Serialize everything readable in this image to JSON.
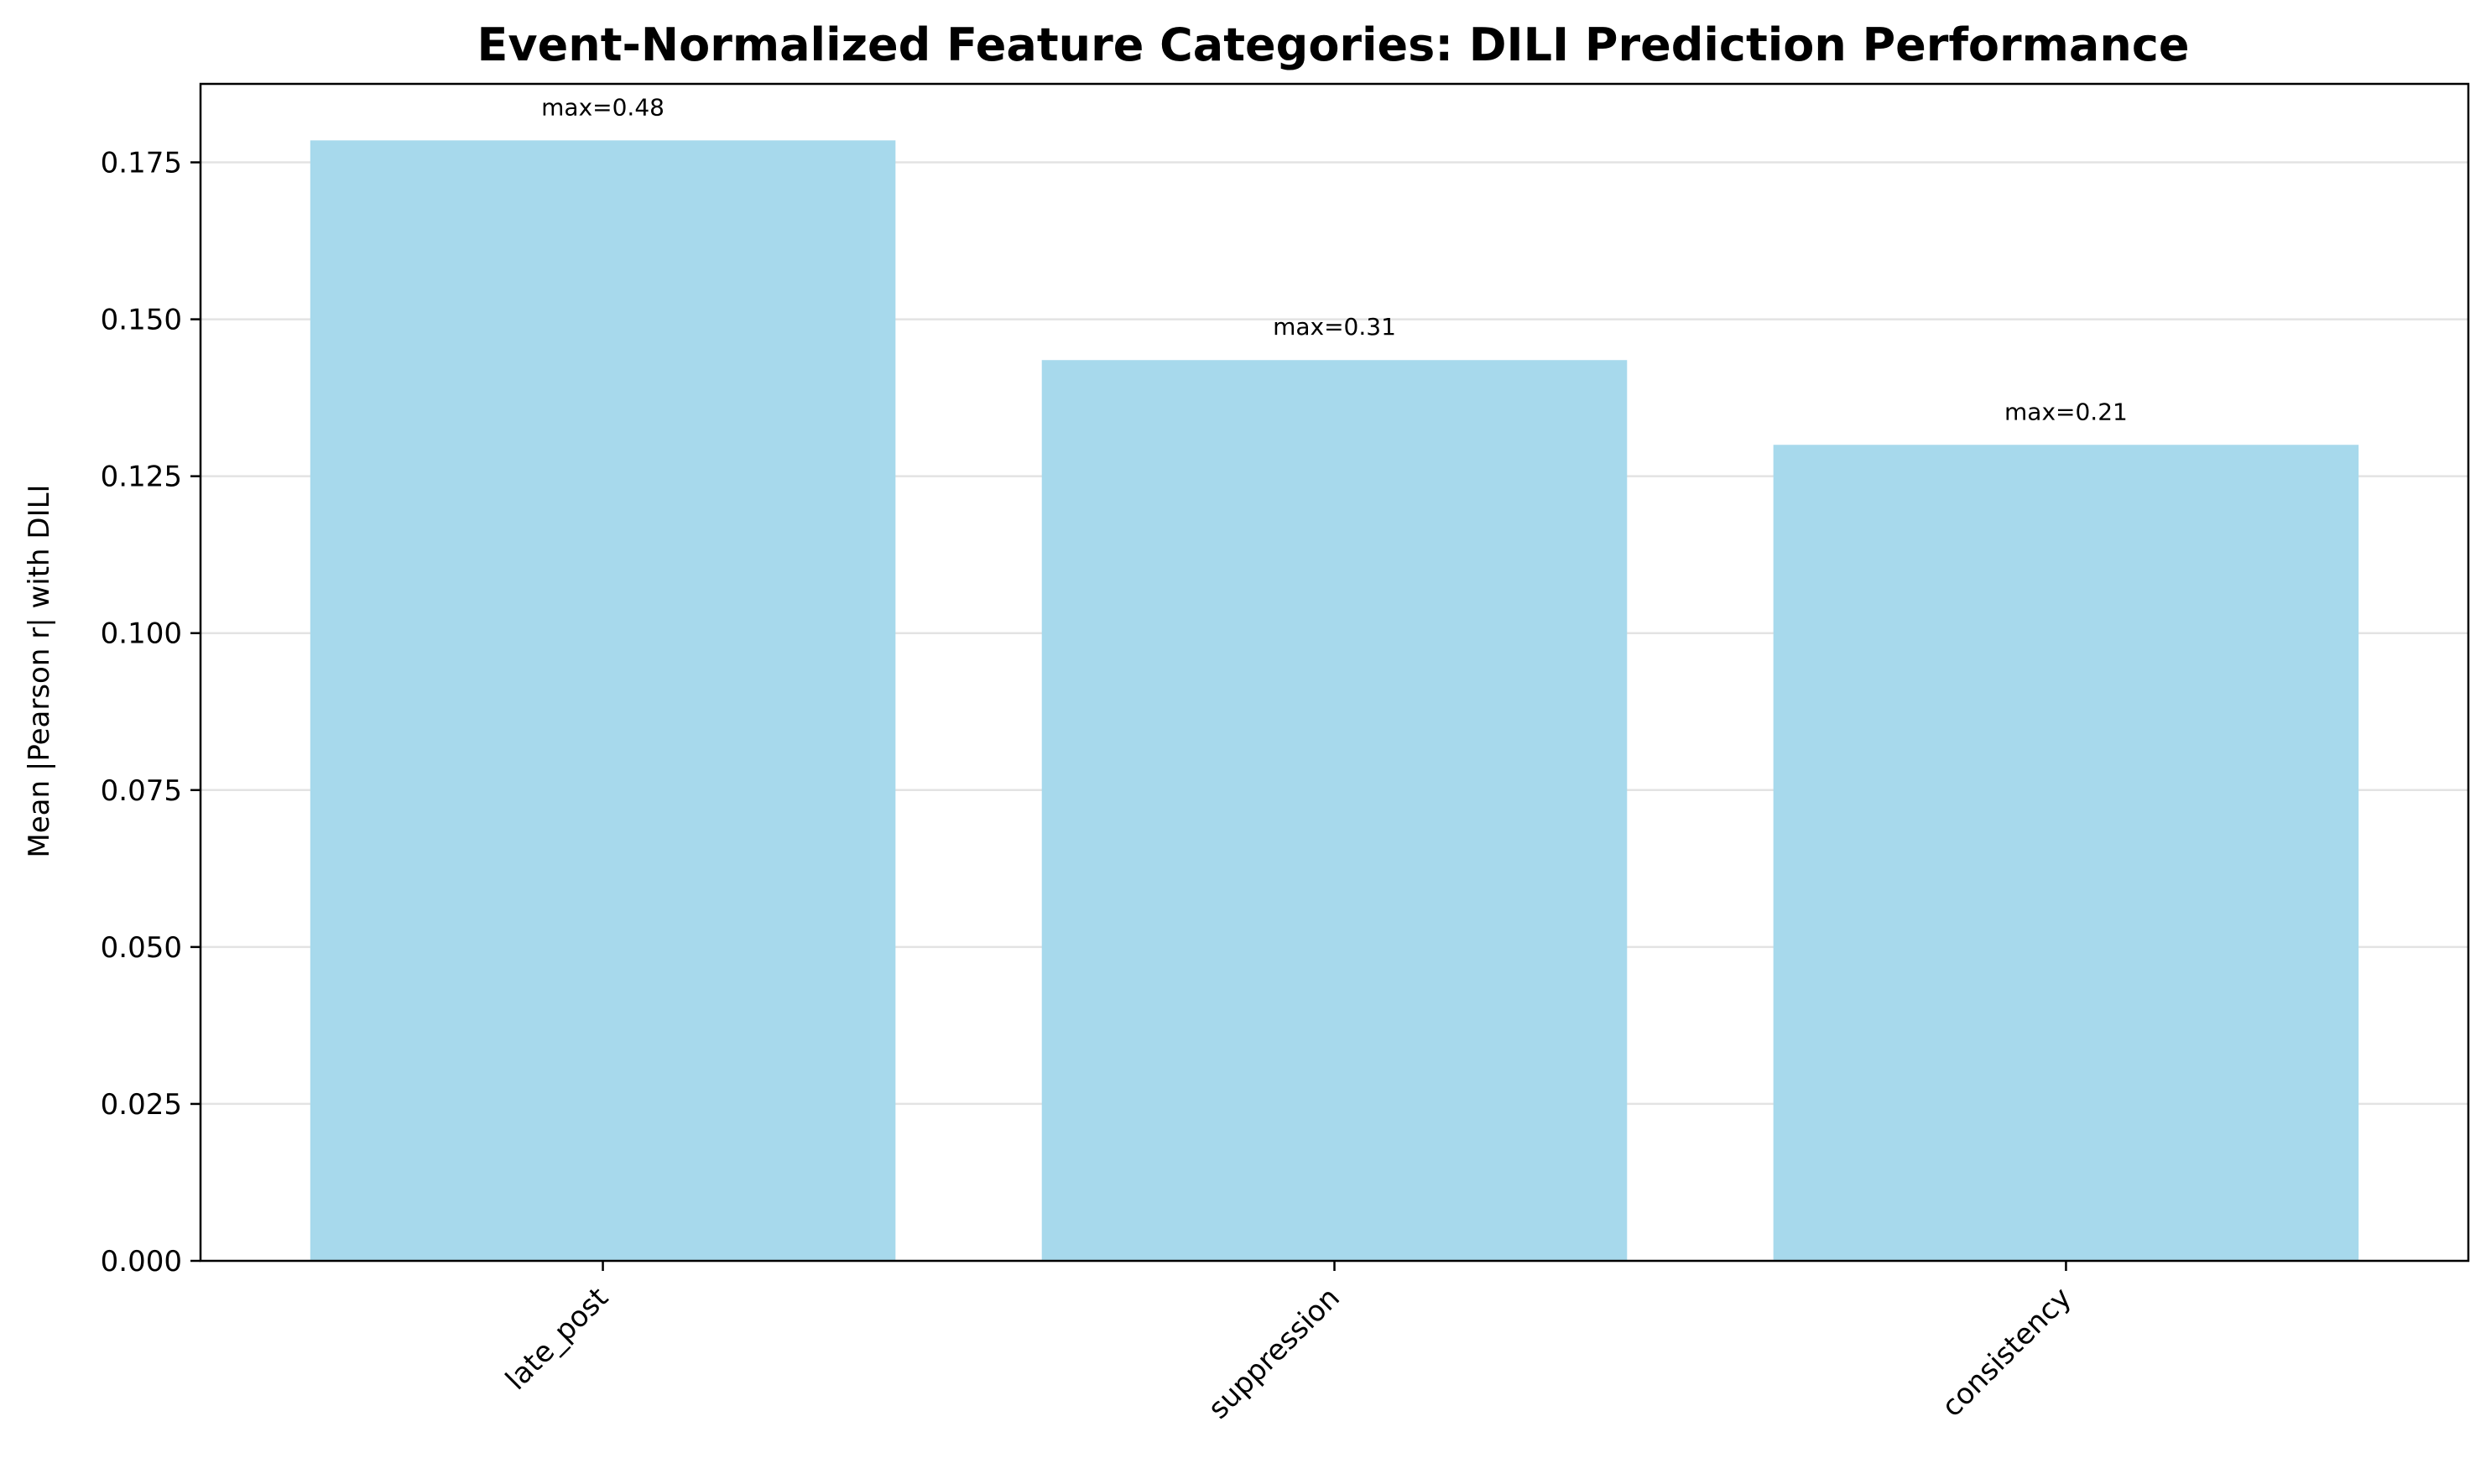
{
  "chart_data": {
    "type": "bar",
    "title": "Event-Normalized Feature Categories: DILI Prediction Performance",
    "xlabel": "",
    "ylabel": "Mean |Pearson r| with DILI",
    "categories": [
      "late_post",
      "suppression",
      "consistency"
    ],
    "values": [
      0.1785,
      0.1435,
      0.13
    ],
    "annotations": [
      "max=0.48",
      "max=0.31",
      "max=0.21"
    ],
    "ylim": [
      0,
      0.1875
    ],
    "yticks": [
      0.0,
      0.025,
      0.05,
      0.075,
      0.1,
      0.125,
      0.15,
      0.175
    ],
    "ytick_labels": [
      "0.000",
      "0.025",
      "0.050",
      "0.075",
      "0.100",
      "0.125",
      "0.150",
      "0.175"
    ],
    "grid": "horizontal",
    "bar_color": "#a7d9ec",
    "grid_color": "#e3e3e3"
  }
}
